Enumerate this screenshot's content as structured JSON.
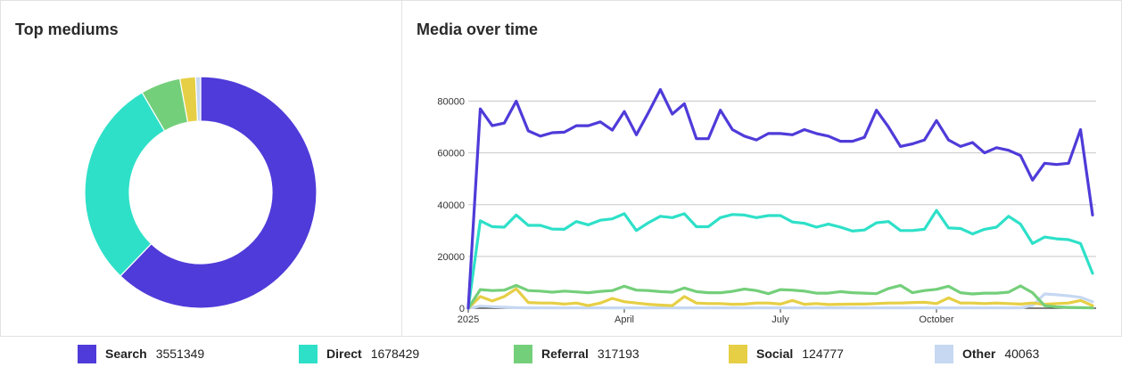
{
  "colors": {
    "search": "#4f3bd9",
    "direct": "#2ee0c8",
    "referral": "#74cf7a",
    "social": "#e6cf45",
    "other": "#c6d8f2",
    "grid": "#c8c8c8",
    "axis": "#333333"
  },
  "left_panel": {
    "title": "Top mediums"
  },
  "right_panel": {
    "title": "Media over time"
  },
  "legend": [
    {
      "key": "search",
      "label": "Search",
      "value": "3551349"
    },
    {
      "key": "direct",
      "label": "Direct",
      "value": "1678429"
    },
    {
      "key": "referral",
      "label": "Referral",
      "value": "317193"
    },
    {
      "key": "social",
      "label": "Social",
      "value": "124777"
    },
    {
      "key": "other",
      "label": "Other",
      "value": "40063"
    }
  ],
  "chart_data": [
    {
      "type": "pie",
      "title": "Top mediums",
      "donut": true,
      "slices": [
        {
          "name": "Search",
          "value": 3551349,
          "color": "#4f3bd9"
        },
        {
          "name": "Direct",
          "value": 1678429,
          "color": "#2ee0c8"
        },
        {
          "name": "Referral",
          "value": 317193,
          "color": "#74cf7a"
        },
        {
          "name": "Social",
          "value": 124777,
          "color": "#e6cf45"
        },
        {
          "name": "Other",
          "value": 40063,
          "color": "#c6d8f2"
        }
      ]
    },
    {
      "type": "line",
      "title": "Media over time",
      "x_start": "2025-01-01",
      "x_interval": "week",
      "xticks": [
        {
          "label": "2025",
          "index": 0
        },
        {
          "label": "April",
          "index": 13
        },
        {
          "label": "July",
          "index": 26
        },
        {
          "label": "October",
          "index": 39
        }
      ],
      "ylim": [
        0,
        85000
      ],
      "yticks": [
        0,
        20000,
        40000,
        60000,
        80000
      ],
      "grid": true,
      "series": [
        {
          "name": "Search",
          "color": "#4f3bd9",
          "values": [
            0,
            77000,
            70500,
            71500,
            80000,
            68500,
            66500,
            67800,
            68000,
            70500,
            70500,
            72000,
            68800,
            76000,
            67000,
            75500,
            84500,
            75000,
            79000,
            65500,
            65500,
            76500,
            69000,
            66500,
            65000,
            67500,
            67500,
            67000,
            69000,
            67500,
            66500,
            64500,
            64500,
            66000,
            76500,
            70000,
            62500,
            63500,
            65000,
            72500,
            65000,
            62500,
            64000,
            60000,
            62000,
            61000,
            59000,
            49500,
            56000,
            55500,
            56000,
            69000,
            36000
          ]
        },
        {
          "name": "Direct",
          "color": "#2ee0c8",
          "values": [
            0,
            33800,
            31500,
            31300,
            36000,
            32000,
            32000,
            30600,
            30500,
            33500,
            32200,
            34000,
            34500,
            36500,
            30000,
            33000,
            35500,
            35000,
            36500,
            31500,
            31500,
            35000,
            36200,
            36000,
            35000,
            35800,
            35800,
            33300,
            32800,
            31300,
            32500,
            31300,
            29800,
            30200,
            33000,
            33500,
            30000,
            30000,
            30500,
            37800,
            31000,
            30800,
            28700,
            30500,
            31300,
            35500,
            32500,
            25000,
            27500,
            26800,
            26500,
            25000,
            13500
          ]
        },
        {
          "name": "Referral",
          "color": "#74cf7a",
          "values": [
            0,
            7200,
            6800,
            7000,
            8800,
            6800,
            6600,
            6200,
            6600,
            6300,
            6000,
            6500,
            6800,
            8500,
            7000,
            6800,
            6400,
            6200,
            7800,
            6400,
            6000,
            6000,
            6500,
            7400,
            6800,
            5600,
            7200,
            7000,
            6600,
            5800,
            5800,
            6400,
            6000,
            5800,
            5600,
            7600,
            8800,
            6000,
            6800,
            7300,
            8500,
            6000,
            5500,
            5800,
            5800,
            6200,
            8600,
            6000,
            1000,
            500,
            300,
            200,
            100
          ]
        },
        {
          "name": "Social",
          "color": "#e6cf45",
          "values": [
            0,
            4500,
            2800,
            4500,
            7500,
            2200,
            2000,
            2000,
            1600,
            2000,
            1000,
            2000,
            3800,
            2500,
            2000,
            1500,
            1200,
            1000,
            4500,
            2000,
            1800,
            1800,
            1500,
            1600,
            2000,
            2000,
            1600,
            3000,
            1500,
            1800,
            1400,
            1500,
            1600,
            1600,
            1800,
            2000,
            2000,
            2200,
            2300,
            1800,
            4000,
            2000,
            2000,
            1800,
            2000,
            1800,
            1600,
            2000,
            1500,
            1800,
            2000,
            3000,
            1000
          ]
        },
        {
          "name": "Other",
          "color": "#c6d8f2",
          "values": [
            0,
            800,
            600,
            400,
            200,
            150,
            150,
            150,
            150,
            150,
            150,
            150,
            150,
            150,
            150,
            150,
            150,
            150,
            150,
            150,
            150,
            150,
            150,
            150,
            150,
            150,
            150,
            150,
            150,
            150,
            150,
            150,
            150,
            150,
            150,
            150,
            150,
            150,
            150,
            150,
            150,
            150,
            150,
            150,
            150,
            150,
            150,
            1000,
            5500,
            5200,
            4800,
            4200,
            2500
          ]
        }
      ]
    }
  ]
}
